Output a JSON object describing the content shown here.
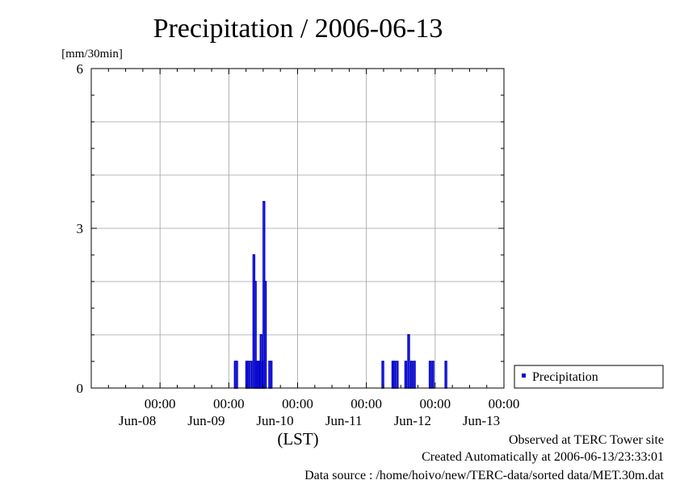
{
  "chart_data": {
    "type": "bar",
    "title": "Precipitation / 2006-06-13",
    "ylabel": "[mm/30min]",
    "xlabel": "(LST)",
    "ylim": [
      0,
      6
    ],
    "y_ticks": [
      "0",
      "3",
      "6"
    ],
    "x_range_hours": [
      -24,
      120
    ],
    "x_ticks": [
      {
        "time": "00:00",
        "date": "Jun-08"
      },
      {
        "time": "00:00",
        "date": "Jun-09"
      },
      {
        "time": "00:00",
        "date": "Jun-10"
      },
      {
        "time": "00:00",
        "date": "Jun-11"
      },
      {
        "time": "00:00",
        "date": "Jun-12"
      },
      {
        "time": "00:00",
        "date": "Jun-13"
      }
    ],
    "grid": true,
    "legend_position": "right",
    "series": [
      {
        "name": "Precipitation",
        "color": "#0000cc",
        "points": [
          {
            "x": "2006-06-09 02:00",
            "y": 0.5
          },
          {
            "x": "2006-06-09 02:30",
            "y": 0.5
          },
          {
            "x": "2006-06-09 06:00",
            "y": 0.5
          },
          {
            "x": "2006-06-09 06:30",
            "y": 0.5
          },
          {
            "x": "2006-06-09 07:30",
            "y": 0.5
          },
          {
            "x": "2006-06-09 08:30",
            "y": 2.5
          },
          {
            "x": "2006-06-09 09:00",
            "y": 2.0
          },
          {
            "x": "2006-06-09 09:30",
            "y": 0.5
          },
          {
            "x": "2006-06-09 10:00",
            "y": 0.5
          },
          {
            "x": "2006-06-09 10:30",
            "y": 0.5
          },
          {
            "x": "2006-06-09 11:00",
            "y": 1.0
          },
          {
            "x": "2006-06-09 11:30",
            "y": 0.5
          },
          {
            "x": "2006-06-09 12:00",
            "y": 3.5
          },
          {
            "x": "2006-06-09 12:30",
            "y": 2.0
          },
          {
            "x": "2006-06-09 14:00",
            "y": 0.5
          },
          {
            "x": "2006-06-09 14:30",
            "y": 0.5
          },
          {
            "x": "2006-06-11 05:30",
            "y": 0.5
          },
          {
            "x": "2006-06-11 09:00",
            "y": 0.5
          },
          {
            "x": "2006-06-11 09:30",
            "y": 0.5
          },
          {
            "x": "2006-06-11 10:30",
            "y": 0.5
          },
          {
            "x": "2006-06-11 13:30",
            "y": 0.5
          },
          {
            "x": "2006-06-11 14:30",
            "y": 1.0
          },
          {
            "x": "2006-06-11 15:30",
            "y": 0.5
          },
          {
            "x": "2006-06-11 16:30",
            "y": 0.5
          },
          {
            "x": "2006-06-11 22:00",
            "y": 0.5
          },
          {
            "x": "2006-06-11 23:00",
            "y": 0.5
          },
          {
            "x": "2006-06-12 03:30",
            "y": 0.5
          }
        ]
      }
    ]
  },
  "footer": {
    "line1": "Observed at TERC Tower site",
    "line2": "Created Automatically at 2006-06-13/23:33:01",
    "line3": "Data source : /home/hoivo/new/TERC-data/sorted  data/MET.30m.dat"
  }
}
